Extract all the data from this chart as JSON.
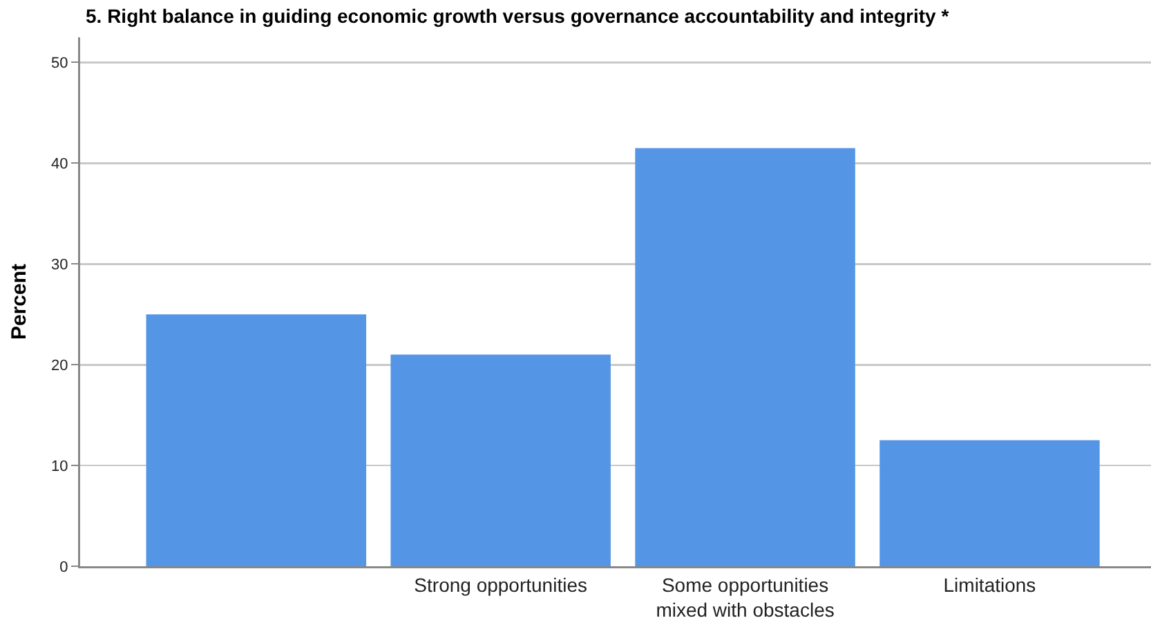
{
  "chart_data": {
    "type": "bar",
    "title": "5. Right balance in guiding economic growth versus governance accountability and integrity *",
    "ylabel": "Percent",
    "categories": [
      null,
      "Strong opportunities",
      "Some opportunities mixed with obstacles",
      "Limitations"
    ],
    "values": [
      25,
      21,
      41.5,
      12.5
    ],
    "color": "#5595e5",
    "ylim": [
      0,
      52.5
    ],
    "yticks": [
      0,
      10,
      20,
      30,
      40,
      50
    ],
    "grid": "y",
    "legend": false
  }
}
